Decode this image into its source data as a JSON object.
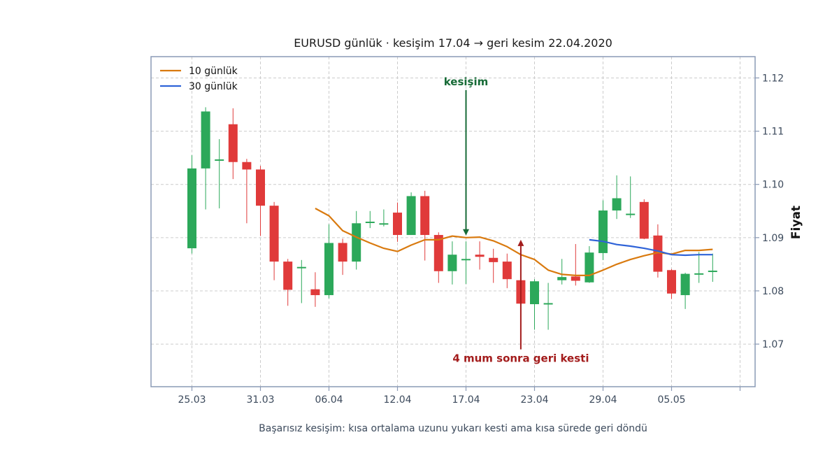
{
  "chart_data": {
    "type": "candlestick",
    "title": "EURUSD günlük · kesişim 17.04 → geri kesim 22.04.2020",
    "ylabel": "Fiyat",
    "caption": "Başarısız kesişim: kısa ortalama uzunu yukarı kesti ama kısa sürede geri döndü",
    "ylim": [
      1.062,
      1.124
    ],
    "yticks": [
      1.07,
      1.08,
      1.09,
      1.1,
      1.11,
      1.12
    ],
    "ytick_labels": [
      "1.07",
      "1.08",
      "1.09",
      "1.10",
      "1.11",
      "1.12"
    ],
    "xticks": [
      "25.03",
      "31.03",
      "06.04",
      "12.04",
      "17.04",
      "23.04",
      "29.04",
      "05.05",
      ""
    ],
    "grid": true,
    "legend_position": "top-left",
    "colors": {
      "up": "#2ca85a",
      "down": "#e03a3a",
      "ma_short": "#d97a0f",
      "ma_long": "#2f63d8",
      "annotation_up": "#176b37",
      "annotation_down": "#a31c1c",
      "axes": "#8a9ab5"
    },
    "candles": [
      {
        "o": 1.088,
        "h": 1.1055,
        "l": 1.087,
        "c": 1.103
      },
      {
        "o": 1.103,
        "h": 1.1145,
        "l": 1.0953,
        "c": 1.1137
      },
      {
        "o": 1.1047,
        "h": 1.1085,
        "l": 1.0955,
        "c": 1.1047
      },
      {
        "o": 1.1113,
        "h": 1.1143,
        "l": 1.101,
        "c": 1.1042
      },
      {
        "o": 1.1042,
        "h": 1.1048,
        "l": 1.0927,
        "c": 1.1028
      },
      {
        "o": 1.1028,
        "h": 1.1035,
        "l": 1.0903,
        "c": 1.096
      },
      {
        "o": 1.096,
        "h": 1.0967,
        "l": 1.082,
        "c": 1.0855
      },
      {
        "o": 1.0855,
        "h": 1.086,
        "l": 1.0772,
        "c": 1.0802
      },
      {
        "o": 1.0845,
        "h": 1.0858,
        "l": 1.0777,
        "c": 1.0845
      },
      {
        "o": 1.0803,
        "h": 1.0835,
        "l": 1.077,
        "c": 1.0792
      },
      {
        "o": 1.0792,
        "h": 1.0925,
        "l": 1.0786,
        "c": 1.089
      },
      {
        "o": 1.089,
        "h": 1.0898,
        "l": 1.083,
        "c": 1.0855
      },
      {
        "o": 1.0855,
        "h": 1.095,
        "l": 1.084,
        "c": 1.0927
      },
      {
        "o": 1.093,
        "h": 1.095,
        "l": 1.0918,
        "c": 1.093
      },
      {
        "o": 1.0927,
        "h": 1.0953,
        "l": 1.0921,
        "c": 1.0927
      },
      {
        "o": 1.0947,
        "h": 1.0966,
        "l": 1.0892,
        "c": 1.0905
      },
      {
        "o": 1.0905,
        "h": 1.0985,
        "l": 1.0905,
        "c": 1.0978
      },
      {
        "o": 1.0978,
        "h": 1.0988,
        "l": 1.0857,
        "c": 1.0905
      },
      {
        "o": 1.0905,
        "h": 1.091,
        "l": 1.0815,
        "c": 1.0837
      },
      {
        "o": 1.0837,
        "h": 1.0893,
        "l": 1.0812,
        "c": 1.0868
      },
      {
        "o": 1.086,
        "h": 1.0893,
        "l": 1.0813,
        "c": 1.086
      },
      {
        "o": 1.0868,
        "h": 1.0893,
        "l": 1.084,
        "c": 1.0864
      },
      {
        "o": 1.0862,
        "h": 1.0879,
        "l": 1.0815,
        "c": 1.0854
      },
      {
        "o": 1.0855,
        "h": 1.087,
        "l": 1.0805,
        "c": 1.0822
      },
      {
        "o": 1.082,
        "h": 1.0822,
        "l": 1.0775,
        "c": 1.0776
      },
      {
        "o": 1.0775,
        "h": 1.0822,
        "l": 1.0727,
        "c": 1.0818
      },
      {
        "o": 1.0777,
        "h": 1.0815,
        "l": 1.0727,
        "c": 1.0777
      },
      {
        "o": 1.082,
        "h": 1.086,
        "l": 1.0812,
        "c": 1.0826
      },
      {
        "o": 1.0827,
        "h": 1.0888,
        "l": 1.081,
        "c": 1.0819
      },
      {
        "o": 1.0816,
        "h": 1.0884,
        "l": 1.0815,
        "c": 1.0872
      },
      {
        "o": 1.0871,
        "h": 1.097,
        "l": 1.0858,
        "c": 1.0951
      },
      {
        "o": 1.0951,
        "h": 1.1017,
        "l": 1.0935,
        "c": 1.0974
      },
      {
        "o": 1.0945,
        "h": 1.1015,
        "l": 1.0937,
        "c": 1.0945
      },
      {
        "o": 1.0967,
        "h": 1.0972,
        "l": 1.0897,
        "c": 1.0898
      },
      {
        "o": 1.0904,
        "h": 1.0925,
        "l": 1.0825,
        "c": 1.0836
      },
      {
        "o": 1.0839,
        "h": 1.0841,
        "l": 1.0785,
        "c": 1.0795
      },
      {
        "o": 1.0792,
        "h": 1.0834,
        "l": 1.0766,
        "c": 1.0832
      },
      {
        "o": 1.0833,
        "h": 1.0873,
        "l": 1.0815,
        "c": 1.0833
      },
      {
        "o": 1.0838,
        "h": 1.087,
        "l": 1.0817,
        "c": 1.0838
      }
    ],
    "series": [
      {
        "name": "10 günlük",
        "start_index": 9,
        "values": [
          1.0955,
          1.0941,
          1.0913,
          1.0901,
          1.089,
          1.088,
          1.0874,
          1.0886,
          1.0896,
          1.0896,
          1.0903,
          1.09,
          1.0901,
          1.0894,
          1.0883,
          1.0868,
          1.0859,
          1.0839,
          1.0831,
          1.0829,
          1.0829,
          1.0839,
          1.085,
          1.0859,
          1.0866,
          1.0872,
          1.0869,
          1.0876,
          1.0876,
          1.0878
        ]
      },
      {
        "name": "30 günlük",
        "start_index": 29,
        "values": [
          1.0896,
          1.0893,
          1.0887,
          1.0884,
          1.088,
          1.0875,
          1.0868,
          1.0867,
          1.0868,
          1.0868
        ]
      }
    ],
    "annotations": [
      {
        "text": "kesişim",
        "x_index": 20,
        "y": 1.0904,
        "text_y": 1.1193,
        "direction": "down",
        "color": "#176b37"
      },
      {
        "text": "4 mum sonra geri kesti",
        "x_index": 24,
        "y": 1.0896,
        "text_y": 1.0673,
        "direction": "up",
        "color": "#a31c1c"
      }
    ]
  }
}
